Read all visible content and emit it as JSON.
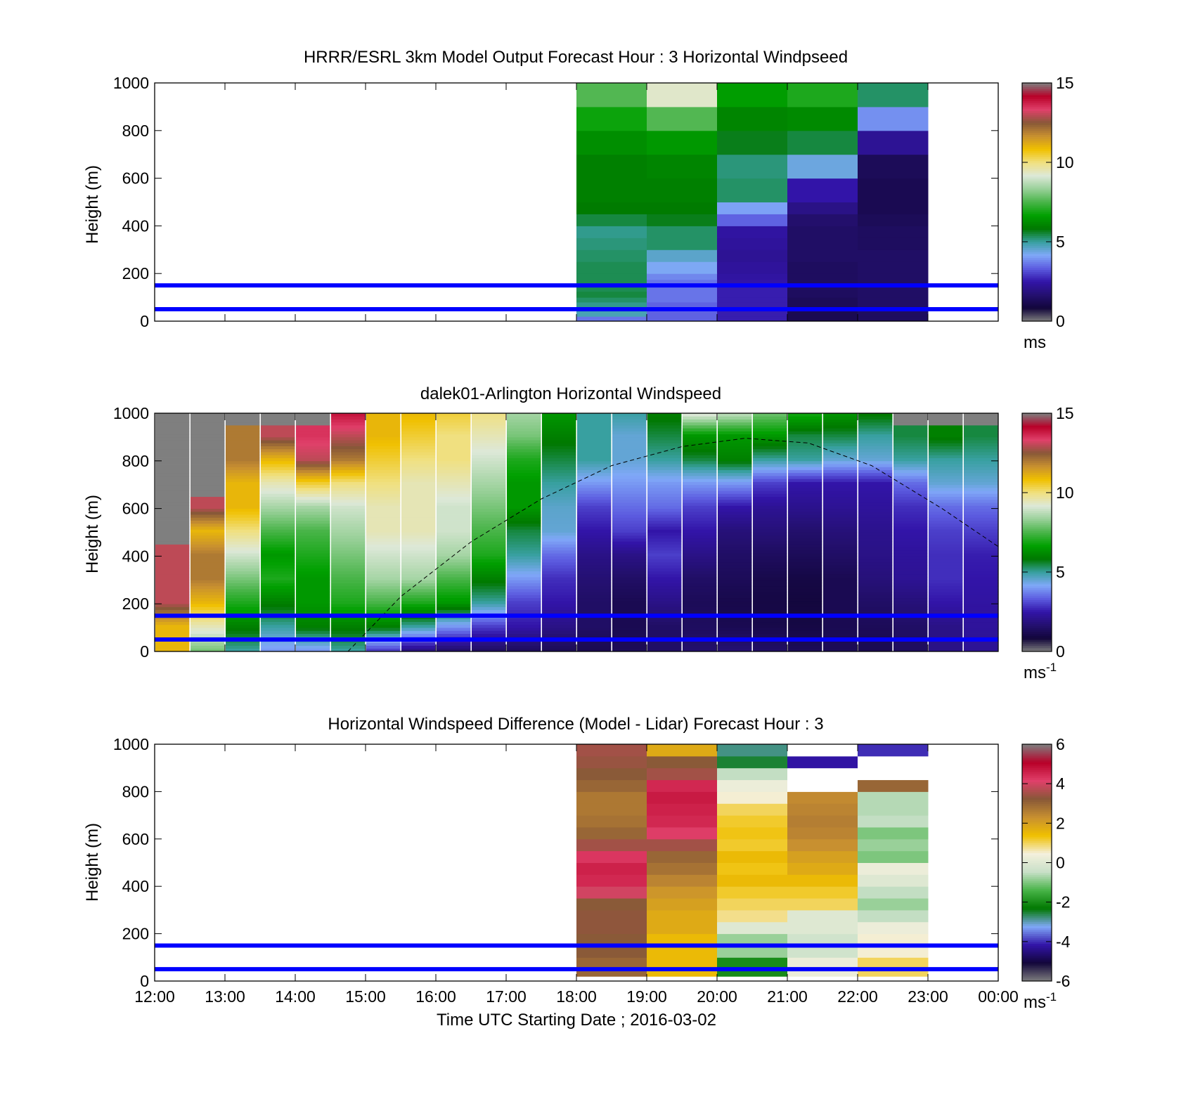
{
  "colormaps": {
    "speed": [
      "#7f7f7f",
      "#12063a",
      "#241070",
      "#3214a8",
      "#5c5ce0",
      "#80a8f8",
      "#38a0a0",
      "#007800",
      "#00a000",
      "#48b448",
      "#98d098",
      "#dde8d8",
      "#f0e080",
      "#f0c000",
      "#c89030",
      "#885838",
      "#e0406a",
      "#b80028",
      "#7f7f7f"
    ],
    "diff": [
      "#7f7f7f",
      "#12063a",
      "#3214a8",
      "#80a8f8",
      "#007800",
      "#48b448",
      "#c8e0c8",
      "#f4f0dc",
      "#f0c000",
      "#c89030",
      "#885838",
      "#e0406a",
      "#b80028",
      "#7f7f7f"
    ]
  },
  "chart_data": [
    {
      "type": "heatmap",
      "name": "model",
      "title": "HRRR/ESRL 3km Model Output   Forecast Hour : 3 Horizontal Windpseed",
      "xlabel": "",
      "ylabel": "Height (m)",
      "xlim": [
        12,
        24
      ],
      "ylim": [
        0,
        1000
      ],
      "xticks": [],
      "yticks": [
        0,
        200,
        400,
        600,
        800,
        1000
      ],
      "colorbar": {
        "min": 0,
        "max": 15,
        "ticks": [
          0,
          5,
          10,
          15
        ],
        "unit": "ms",
        "unit_sup": "",
        "colormap": "speed"
      },
      "reference_lines_m": [
        50,
        150
      ],
      "x_edges": [
        18,
        19,
        20,
        21,
        22,
        23
      ],
      "y_edges": [
        0,
        20,
        40,
        60,
        80,
        100,
        125,
        150,
        175,
        200,
        250,
        300,
        350,
        400,
        450,
        500,
        600,
        700,
        800,
        900,
        1000
      ],
      "values": [
        [
          3.6,
          3.4,
          2.6,
          1.2,
          1.4
        ],
        [
          4.8,
          3.4,
          2.6,
          1.2,
          1.4
        ],
        [
          4.9,
          3.4,
          2.6,
          1.3,
          1.5
        ],
        [
          5.1,
          3.4,
          2.6,
          1.3,
          1.5
        ],
        [
          5.3,
          3.6,
          2.6,
          1.3,
          1.5
        ],
        [
          5.5,
          3.6,
          2.6,
          1.4,
          1.5
        ],
        [
          5.4,
          3.6,
          2.6,
          1.4,
          1.5
        ],
        [
          5.4,
          3.6,
          2.5,
          1.4,
          1.5
        ],
        [
          5.4,
          3.8,
          2.4,
          1.4,
          1.5
        ],
        [
          5.4,
          4.2,
          2.3,
          1.4,
          1.5
        ],
        [
          5.3,
          4.6,
          2.2,
          1.5,
          1.5
        ],
        [
          5.2,
          5.3,
          2.3,
          1.5,
          1.4
        ],
        [
          5.1,
          5.3,
          2.4,
          1.5,
          1.4
        ],
        [
          5.5,
          5.7,
          3.4,
          1.6,
          1.3
        ],
        [
          5.9,
          5.9,
          4.1,
          2.0,
          1.2
        ],
        [
          6.0,
          6.0,
          5.3,
          2.5,
          1.2
        ],
        [
          6.0,
          6.1,
          5.2,
          4.4,
          1.3
        ],
        [
          6.3,
          6.5,
          5.7,
          5.5,
          2.2
        ],
        [
          6.8,
          7.6,
          6.1,
          6.2,
          3.9
        ],
        [
          7.6,
          9.3,
          6.6,
          7.0,
          5.3
        ]
      ]
    },
    {
      "type": "heatmap",
      "name": "lidar",
      "title": "dalek01-Arlington  Horizontal Windspeed",
      "xlabel": "",
      "ylabel": "Height (m)",
      "xlim": [
        12,
        24
      ],
      "ylim": [
        0,
        1000
      ],
      "xticks": [],
      "yticks": [
        0,
        200,
        400,
        600,
        800,
        1000
      ],
      "colorbar": {
        "min": 0,
        "max": 15,
        "ticks": [
          0,
          5,
          10,
          15
        ],
        "unit": "ms",
        "unit_sup": "-1",
        "colormap": "speed"
      },
      "reference_lines_m": [
        50,
        150
      ],
      "dashed_curve": {
        "x": [
          14.75,
          15.5,
          16.5,
          17.5,
          18.5,
          19.5,
          20.4,
          21.3,
          22.2,
          23.2,
          24.0
        ],
        "y": [
          0,
          230,
          460,
          640,
          780,
          860,
          895,
          875,
          780,
          600,
          440
        ]
      },
      "time_profiles": [
        12.25,
        12.75,
        13.25,
        13.75,
        14.25,
        14.75,
        15.25,
        15.75,
        16.25,
        16.75,
        17.25,
        17.75,
        18.25,
        18.75,
        19.25,
        19.75,
        20.25,
        20.75,
        21.25,
        21.75,
        22.25,
        22.75,
        23.25,
        23.75
      ],
      "profile_heights_m": [
        0,
        100,
        200,
        300,
        400,
        500,
        600,
        700,
        800,
        900,
        1000
      ],
      "profile_speeds": [
        [
          11,
          11,
          13,
          13,
          13,
          99,
          99,
          99,
          99,
          99,
          99
        ],
        [
          8,
          9.5,
          11,
          12,
          12,
          11,
          13,
          99,
          99,
          99,
          99
        ],
        [
          5,
          6,
          7,
          8,
          9,
          10,
          11,
          11,
          12,
          12,
          99
        ],
        [
          4,
          5,
          6,
          7,
          6.5,
          7.5,
          8.5,
          9.5,
          11,
          13,
          99
        ],
        [
          4,
          6,
          6.5,
          6.5,
          7,
          7.5,
          8.5,
          10.5,
          13,
          13.5,
          99
        ],
        [
          5,
          6,
          7,
          7.5,
          8,
          8.5,
          9,
          10,
          12,
          13,
          14
        ],
        [
          3,
          6,
          7.5,
          8.5,
          9,
          9.5,
          9.5,
          10,
          10.5,
          11,
          11
        ],
        [
          2,
          5,
          7,
          8.5,
          9,
          9.5,
          9.5,
          9.5,
          10,
          10.5,
          11
        ],
        [
          1.6,
          4,
          6.5,
          7.5,
          8.5,
          9,
          9,
          9.5,
          10,
          10,
          10.5
        ],
        [
          1.5,
          3,
          5,
          6,
          7,
          7.5,
          8,
          8.5,
          9,
          9.5,
          10
        ],
        [
          1.4,
          2.5,
          3,
          4,
          5,
          5.5,
          6.5,
          6.5,
          7,
          8,
          8.5
        ],
        [
          1.3,
          2,
          2.5,
          2.8,
          3.5,
          4.5,
          4.6,
          5,
          5.5,
          6,
          6.5
        ],
        [
          1.2,
          1.5,
          1.5,
          1.7,
          2,
          2.5,
          3,
          4,
          5,
          5,
          5
        ],
        [
          1.3,
          1.2,
          1.2,
          1.5,
          2,
          3,
          3.5,
          4,
          4.5,
          4.5,
          5
        ],
        [
          1.5,
          1.5,
          2,
          2.5,
          3,
          2.5,
          3.5,
          4,
          5,
          5.5,
          6
        ],
        [
          1.6,
          1.4,
          1.3,
          1.5,
          2,
          2.5,
          3,
          4,
          5.5,
          6.5,
          9.5
        ],
        [
          1.7,
          1.2,
          1.1,
          1.3,
          1.5,
          1.8,
          2.5,
          4,
          6,
          6.5,
          9
        ],
        [
          1.5,
          1.1,
          1.0,
          1.1,
          1.4,
          1.8,
          2.2,
          3,
          5,
          6.5,
          8
        ],
        [
          1.3,
          1.0,
          0.9,
          1.0,
          1.3,
          1.6,
          2.1,
          2.5,
          5,
          5.5,
          7
        ],
        [
          1.3,
          1.2,
          1.2,
          1.2,
          1.5,
          1.8,
          2.2,
          2.5,
          4.5,
          5.5,
          6.5
        ],
        [
          1.2,
          1.3,
          1.5,
          1.8,
          2,
          2.1,
          2.3,
          2.5,
          4.5,
          5,
          6
        ],
        [
          1.4,
          1.5,
          1.8,
          2.2,
          2.3,
          2.5,
          2.8,
          3.5,
          5,
          5.5,
          99
        ],
        [
          2,
          2,
          2.5,
          2.8,
          2.8,
          3,
          3.5,
          4.5,
          5,
          6,
          99
        ],
        [
          2.2,
          2.3,
          2.4,
          2.5,
          2.6,
          3,
          3.5,
          4.5,
          5,
          5.5,
          99
        ]
      ]
    },
    {
      "type": "heatmap",
      "name": "difference",
      "title": "Horizontal Windspeed Difference (Model - Lidar) Forecast Hour : 3",
      "xlabel": "Time UTC  Starting Date ; 2016-03-02",
      "ylabel": "Height (m)",
      "xlim": [
        12,
        24
      ],
      "ylim": [
        0,
        1000
      ],
      "xticks": [
        "12:00",
        "13:00",
        "14:00",
        "15:00",
        "16:00",
        "17:00",
        "18:00",
        "19:00",
        "20:00",
        "21:00",
        "22:00",
        "23:00",
        "00:00"
      ],
      "yticks": [
        0,
        200,
        400,
        600,
        800,
        1000
      ],
      "colorbar": {
        "min": -6,
        "max": 6,
        "ticks": [
          -6,
          -4,
          -2,
          0,
          2,
          4,
          6
        ],
        "unit": "ms",
        "unit_sup": "-1",
        "colormap": "diff"
      },
      "reference_lines_m": [
        50,
        150
      ],
      "x_edges": [
        18,
        19,
        20,
        21,
        22,
        23
      ],
      "y_edges": [
        20,
        100,
        200,
        250,
        300,
        350,
        400,
        450,
        500,
        550,
        600,
        650,
        700,
        750,
        800,
        850,
        900,
        950,
        1000
      ],
      "values": [
        [
          3.0,
          1.5,
          -2.0,
          0.3,
          1.0
        ],
        [
          3.2,
          1.5,
          -0.8,
          -0.3,
          0.5
        ],
        [
          3.3,
          1.8,
          0.0,
          0.0,
          0.3
        ],
        [
          3.3,
          1.8,
          0.8,
          0.0,
          -0.5
        ],
        [
          3.2,
          2.0,
          1.0,
          1.0,
          -0.8
        ],
        [
          4.0,
          2.2,
          1.2,
          1.2,
          -0.5
        ],
        [
          4.5,
          2.5,
          1.5,
          1.5,
          0.0
        ],
        [
          4.6,
          2.8,
          1.3,
          1.8,
          0.3
        ],
        [
          4.3,
          3.0,
          1.5,
          2.0,
          -1.0
        ],
        [
          3.5,
          3.5,
          1.2,
          2.3,
          -0.8
        ],
        [
          3.0,
          4.2,
          1.3,
          2.5,
          -1.0
        ],
        [
          2.8,
          4.5,
          1.2,
          2.6,
          -0.5
        ],
        [
          2.7,
          4.6,
          1.0,
          2.5,
          -0.6
        ],
        [
          2.7,
          4.7,
          0.5,
          2.4,
          -0.6
        ],
        [
          3.0,
          4.5,
          0.3,
          99,
          3.0
        ],
        [
          3.2,
          3.5,
          -0.5,
          99,
          99
        ],
        [
          3.4,
          3.2,
          -2.5,
          -4.2,
          99
        ],
        [
          3.5,
          1.8,
          -2.8,
          99,
          -4.0
        ]
      ]
    }
  ]
}
